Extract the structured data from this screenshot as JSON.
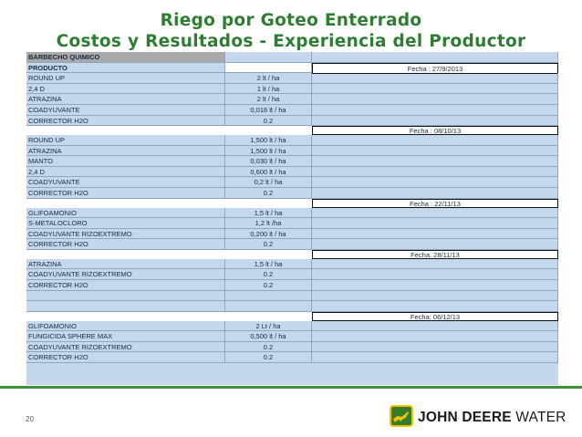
{
  "header": {
    "title_line1": "Riego por Goteo Enterrado",
    "title_line2": "Costos y Resultados -  Experiencia del Productor"
  },
  "table": {
    "section_label": "BARBECHO QUIMICO",
    "column_header": "PRODUCTO",
    "groups": [
      {
        "date": "Fecha : 27/9/2013",
        "rows": [
          {
            "product": "ROUND UP",
            "dose": "2 lt / ha"
          },
          {
            "product": "2,4 D",
            "dose": "1 lt / ha"
          },
          {
            "product": "ATRAZINA",
            "dose": "2 lt / ha"
          },
          {
            "product": "COADYUVANTE",
            "dose": "0,016 lt /  ha"
          },
          {
            "product": "CORRECTOR H2O",
            "dose": "0.2"
          }
        ]
      },
      {
        "date": "Fecha : 08/10/13",
        "rows": [
          {
            "product": "ROUND UP",
            "dose": "1,500 lt / ha"
          },
          {
            "product": "ATRAZINA",
            "dose": "1,500 lt / ha"
          },
          {
            "product": "MANTO",
            "dose": "0,030 lt / ha"
          },
          {
            "product": "2,4 D",
            "dose": "0,600 lt / ha"
          },
          {
            "product": "COADYUVANTE",
            "dose": "0,2 lt / ha"
          },
          {
            "product": "CORRECTOR H2O",
            "dose": "0.2"
          }
        ]
      },
      {
        "date": "Fecha : 22/11/13",
        "rows": [
          {
            "product": "GLIFOAMONIO",
            "dose": "1,5 lt / ha"
          },
          {
            "product": "S-METALOCLORO",
            "dose": "1,2 lt /ha"
          },
          {
            "product": "COADYUVANTE RIZOEXTREMO",
            "dose": "0,200 lt / ha"
          },
          {
            "product": "CORRECTOR H2O",
            "dose": "0.2"
          }
        ]
      },
      {
        "date": "Fecha: 28/11/13",
        "rows": [
          {
            "product": "ATRAZINA",
            "dose": "1,5 lt / ha"
          },
          {
            "product": "COADYUVANTE RIZOEXTREMO",
            "dose": "0.2"
          },
          {
            "product": "CORRECTOR H2O",
            "dose": "0.2"
          },
          {
            "product": "",
            "dose": ""
          },
          {
            "product": "",
            "dose": ""
          }
        ]
      },
      {
        "date": "Fecha: 06/12/13",
        "rows": [
          {
            "product": "GLIFOAMONIO",
            "dose": "2 Lt / ha"
          },
          {
            "product": "FUNGICIDA SPHERE MAX",
            "dose": "0,500 lt / ha"
          },
          {
            "product": "COADYUVANTE RIZOEXTREMO",
            "dose": "0.2"
          },
          {
            "product": "CORRECTOR H2O",
            "dose": "0.2"
          }
        ]
      }
    ]
  },
  "footer": {
    "page_number": "20",
    "brand_name": "JOHN DEERE",
    "brand_suffix": "WATER",
    "brand_green": "#367c2b",
    "brand_yellow": "#f2c400",
    "logo_icon": "leaping-deer-icon"
  }
}
